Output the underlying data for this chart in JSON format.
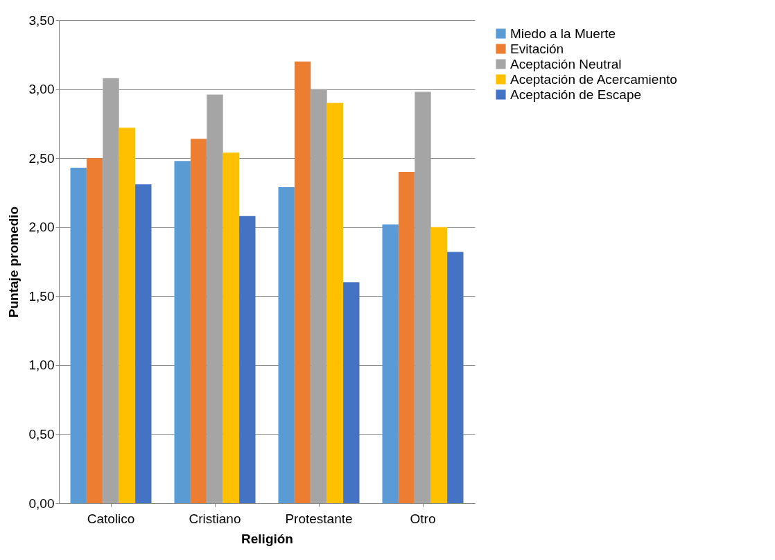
{
  "chart_data": {
    "type": "bar",
    "xlabel": "Religión",
    "ylabel": "Puntaje promedio",
    "categories": [
      "Catolico",
      "Cristiano",
      "Protestante",
      "Otro"
    ],
    "series": [
      {
        "name": "Miedo a la Muerte",
        "color": "#5b9bd5",
        "values": [
          2.43,
          2.48,
          2.29,
          2.02
        ]
      },
      {
        "name": "Evitación",
        "color": "#ed7d31",
        "values": [
          2.5,
          2.64,
          3.2,
          2.4
        ]
      },
      {
        "name": "Aceptación Neutral",
        "color": "#a5a5a5",
        "values": [
          3.08,
          2.96,
          3.0,
          2.98
        ]
      },
      {
        "name": "Aceptación de Acercamiento",
        "color": "#ffc000",
        "values": [
          2.72,
          2.54,
          2.9,
          2.0
        ]
      },
      {
        "name": "Aceptación de Escape",
        "color": "#4472c4",
        "values": [
          2.31,
          2.08,
          1.6,
          1.82
        ]
      }
    ],
    "ylim": [
      0,
      3.5
    ],
    "yticks": [
      {
        "value": 0,
        "label": "0,00"
      },
      {
        "value": 0.5,
        "label": "0,50"
      },
      {
        "value": 1,
        "label": "1,00"
      },
      {
        "value": 1.5,
        "label": "1,50"
      },
      {
        "value": 2,
        "label": "2,00"
      },
      {
        "value": 2.5,
        "label": "2,50"
      },
      {
        "value": 3,
        "label": "3,00"
      },
      {
        "value": 3.5,
        "label": "3,50"
      }
    ],
    "grid": "y",
    "legend": "right"
  }
}
